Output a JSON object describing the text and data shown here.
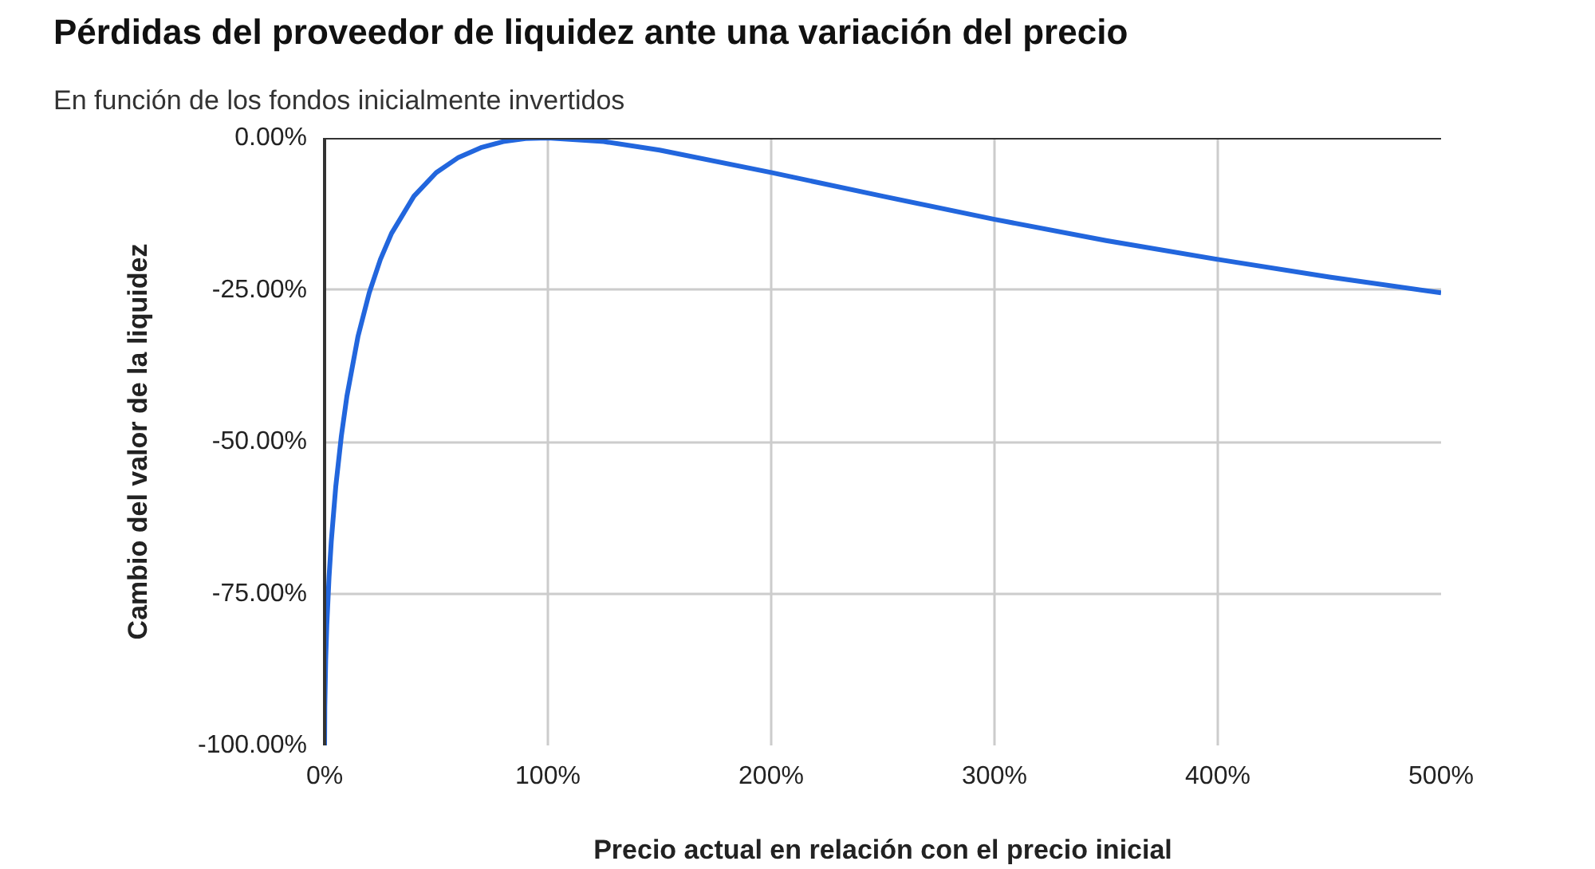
{
  "chart_data": {
    "type": "line",
    "title": "Pérdidas del proveedor de liquidez ante una variación del precio",
    "subtitle": "En función de los fondos inicialmente invertidos",
    "xlabel": "Precio actual en relación con el precio inicial",
    "ylabel": "Cambio del valor de la liquidez",
    "x": [
      0,
      0.1,
      0.5,
      1,
      2,
      3,
      5,
      7.5,
      10,
      15,
      20,
      25,
      30,
      40,
      50,
      60,
      70,
      80,
      90,
      100,
      125,
      150,
      200,
      250,
      300,
      350,
      400,
      450,
      500
    ],
    "series": [
      {
        "color": "#2266dd",
        "values": [
          -100,
          -93.7,
          -85.9,
          -80.2,
          -72.3,
          -66.4,
          -57.4,
          -49.1,
          -42.5,
          -32.6,
          -25.5,
          -20,
          -15.7,
          -9.6,
          -5.7,
          -3.2,
          -1.6,
          -0.6,
          -0.1,
          0,
          -0.6,
          -2.0,
          -5.7,
          -9.6,
          -13.4,
          -16.9,
          -20,
          -22.9,
          -25.5
        ]
      }
    ],
    "xlim": [
      0,
      500
    ],
    "ylim": [
      -100,
      0
    ],
    "xticks": [
      {
        "value": 0,
        "label": "0%"
      },
      {
        "value": 100,
        "label": "100%"
      },
      {
        "value": 200,
        "label": "200%"
      },
      {
        "value": 300,
        "label": "300%"
      },
      {
        "value": 400,
        "label": "400%"
      },
      {
        "value": 500,
        "label": "500%"
      }
    ],
    "yticks": [
      {
        "value": -100,
        "label": "-100.00%"
      },
      {
        "value": -75,
        "label": "-75.00%"
      },
      {
        "value": -50,
        "label": "-50.00%"
      },
      {
        "value": -25,
        "label": "-25.00%"
      },
      {
        "value": 0,
        "label": "0.00%"
      }
    ],
    "ref_lines": [
      {
        "axis": "y",
        "value": 0,
        "color": "#333333"
      }
    ],
    "grid": true,
    "marker": "none",
    "line_style": "solid"
  }
}
